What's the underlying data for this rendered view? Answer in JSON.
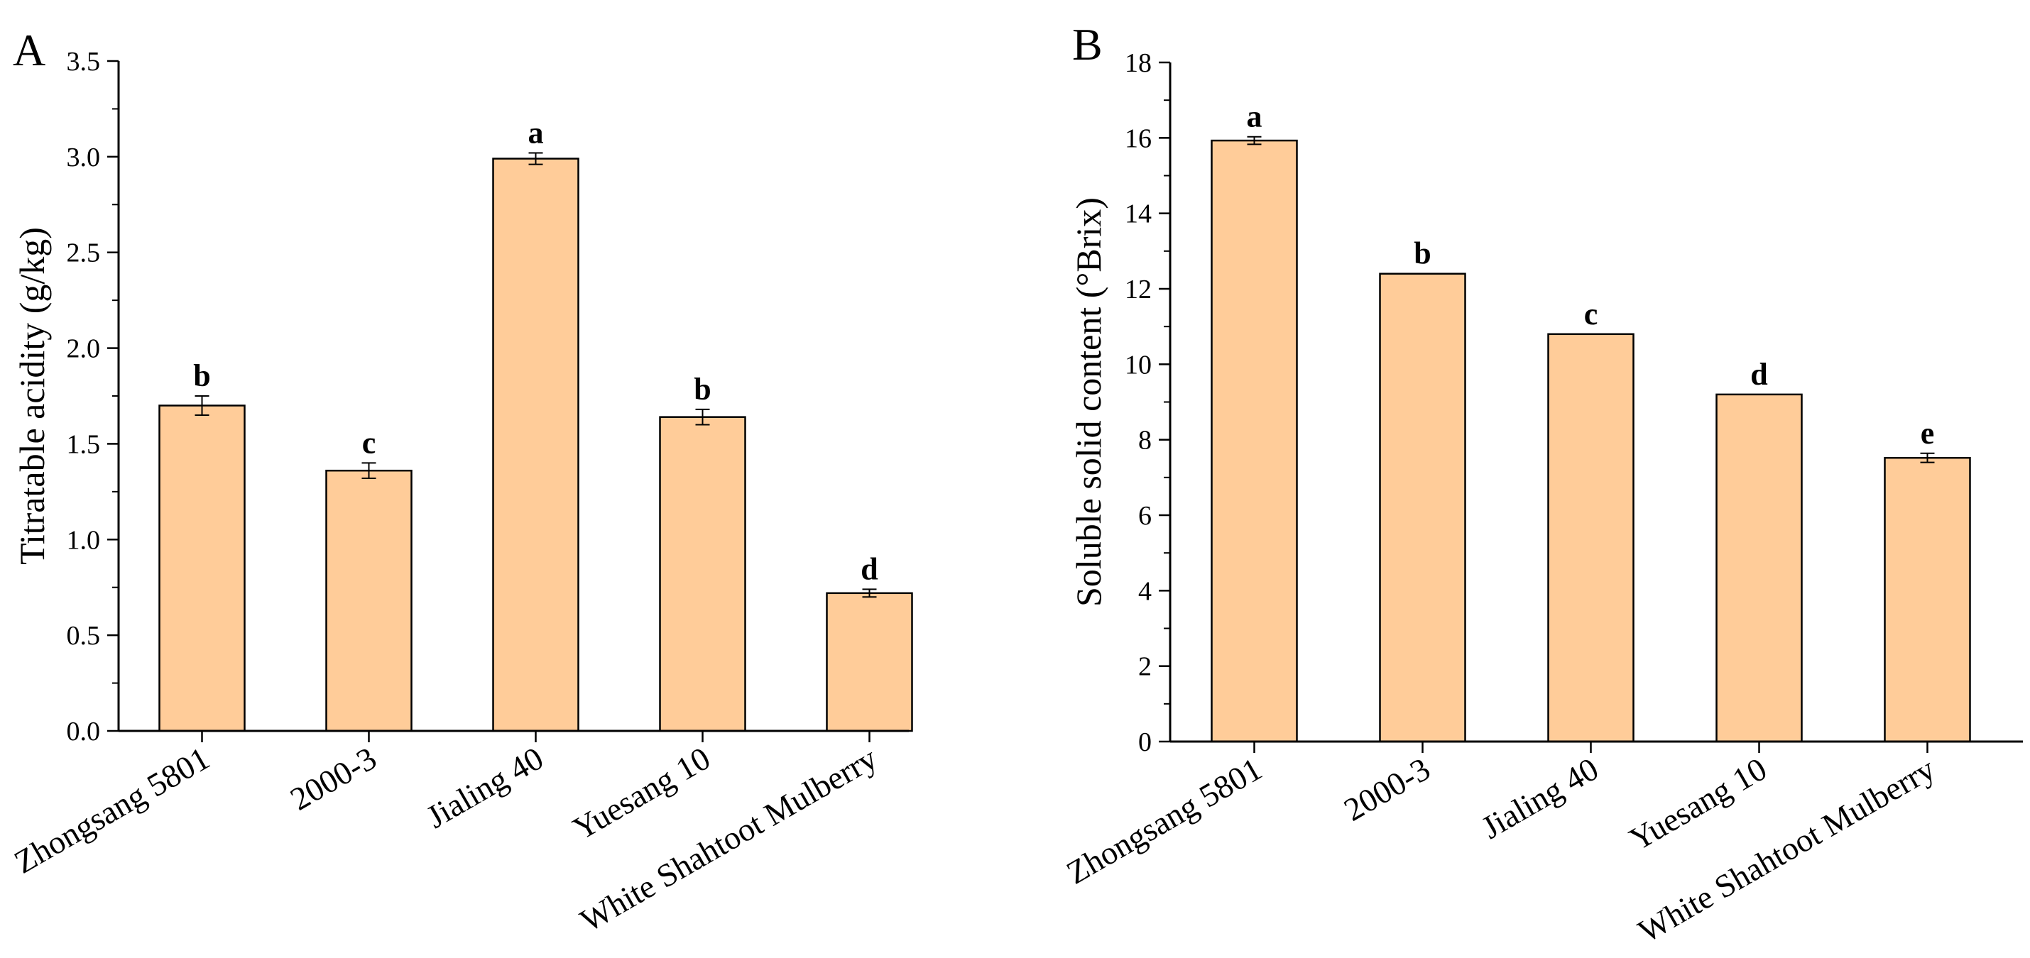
{
  "bar_color": "#FFCC99",
  "chart_data": [
    {
      "type": "bar",
      "panel_label": "A",
      "title": "",
      "xlabel": "",
      "ylabel": "Titratable acidity (g/kg)",
      "ylim": [
        0,
        3.5
      ],
      "yticks": [
        "0.0",
        "0.5",
        "1.0",
        "1.5",
        "2.0",
        "2.5",
        "3.0",
        "3.5"
      ],
      "categories": [
        "Zhongsang 5801",
        "2000-3",
        "Jialing 40",
        "Yuesang 10",
        "White Shahtoot Mulberry"
      ],
      "values": [
        1.7,
        1.36,
        2.99,
        1.64,
        0.72
      ],
      "errors": [
        0.05,
        0.04,
        0.03,
        0.04,
        0.02
      ],
      "significance": [
        "b",
        "c",
        "a",
        "b",
        "d"
      ]
    },
    {
      "type": "bar",
      "panel_label": "B",
      "title": "",
      "xlabel": "",
      "ylabel": "Soluble solid content (°Brix)",
      "ylim": [
        0,
        18
      ],
      "yticks": [
        "0",
        "2",
        "4",
        "6",
        "8",
        "10",
        "12",
        "14",
        "16",
        "18"
      ],
      "categories": [
        "Zhongsang 5801",
        "2000-3",
        "Jialing 40",
        "Yuesang 10",
        "White Shahtoot Mulberry"
      ],
      "values": [
        15.93,
        12.4,
        10.8,
        9.2,
        7.52
      ],
      "errors": [
        0.1,
        0.0,
        0.0,
        0.0,
        0.12
      ],
      "significance": [
        "a",
        "b",
        "c",
        "d",
        "e"
      ]
    }
  ]
}
